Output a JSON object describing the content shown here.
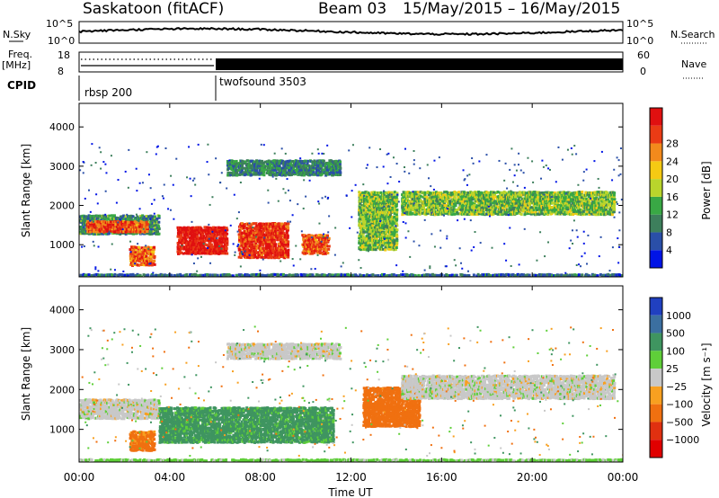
{
  "header": {
    "station": "Saskatoon (fitACF)",
    "beam": "Beam 03",
    "date_range": "15/May/2015 – 16/May/2015"
  },
  "top_panels": {
    "nsky_label": "N.Sky",
    "nsky_ticks": [
      "10^5",
      "10^0"
    ],
    "nsearch_label": "N.Search",
    "freq_label_1": "Freq.",
    "freq_label_2": "[MHz]",
    "freq_ticks": [
      "18",
      "8"
    ],
    "nave_ticks": [
      "60",
      "0"
    ],
    "nave_label": "Nave",
    "cpid_label": "CPID",
    "cpid_segments": [
      {
        "name": "rbsp 200",
        "start_hour": 0,
        "end_hour": 6
      },
      {
        "name": "twofsound 3503",
        "start_hour": 6,
        "end_hour": 24
      }
    ]
  },
  "axes": {
    "y_label": "Slant Range [km]",
    "x_label": "Time UT",
    "y_ticks": [
      "1000",
      "2000",
      "3000",
      "4000"
    ],
    "x_ticks": [
      "00:00",
      "04:00",
      "08:00",
      "12:00",
      "16:00",
      "20:00",
      "00:00"
    ]
  },
  "power_scale": {
    "label": "Power [dB]",
    "ticks": [
      "4",
      "8",
      "12",
      "16",
      "20",
      "24",
      "28"
    ],
    "colors": [
      "#0014e6",
      "#2a4fa8",
      "#3d7f5c",
      "#39a845",
      "#b9d52c",
      "#f5ca13",
      "#f28a1c",
      "#ea3b15",
      "#e01010"
    ]
  },
  "velocity_scale": {
    "label": "Velocity [m s⁻¹]",
    "ticks": [
      "1000",
      "500",
      "100",
      "25",
      "−25",
      "−100",
      "−500",
      "−1000"
    ],
    "colors": [
      "#2040c0",
      "#3b6fa0",
      "#3f9560",
      "#5fcf39",
      "#c8c8c8",
      "#f8a020",
      "#f07010",
      "#e03010",
      "#e00000"
    ]
  },
  "chart_data": [
    {
      "type": "heatmap",
      "title": "Power",
      "xlabel": "Time UT",
      "ylabel": "Slant Range [km]",
      "xlim": [
        0,
        24
      ],
      "ylim": [
        180,
        4600
      ],
      "colorbar": {
        "label": "Power [dB]",
        "range": [
          0,
          32
        ]
      },
      "regions": [
        {
          "hours": [
            0,
            3.5
          ],
          "range_km": [
            1300,
            1800
          ],
          "value_db": 10
        },
        {
          "hours": [
            0.3,
            3.0
          ],
          "range_km": [
            1350,
            1650
          ],
          "value_db": 26
        },
        {
          "hours": [
            2.2,
            3.3
          ],
          "range_km": [
            500,
            1000
          ],
          "value_db": 25
        },
        {
          "hours": [
            4.3,
            6.5
          ],
          "range_km": [
            800,
            1500
          ],
          "value_db": 30
        },
        {
          "hours": [
            7.0,
            9.2
          ],
          "range_km": [
            700,
            1600
          ],
          "value_db": 28
        },
        {
          "hours": [
            9.8,
            11.0
          ],
          "range_km": [
            800,
            1300
          ],
          "value_db": 26
        },
        {
          "hours": [
            12.3,
            14.0
          ],
          "range_km": [
            900,
            2400
          ],
          "value_db": 14
        },
        {
          "hours": [
            14.2,
            23.6
          ],
          "range_km": [
            1800,
            2400
          ],
          "value_db": 14
        },
        {
          "hours": [
            6.5,
            11.5
          ],
          "range_km": [
            2800,
            3200
          ],
          "value_db": 9
        },
        {
          "hours": [
            0,
            24
          ],
          "range_km": [
            180,
            300
          ],
          "value_db": 7
        }
      ]
    },
    {
      "type": "heatmap",
      "title": "Velocity",
      "xlabel": "Time UT",
      "ylabel": "Slant Range [km]",
      "xlim": [
        0,
        24
      ],
      "ylim": [
        180,
        4600
      ],
      "colorbar": {
        "label": "Velocity [m s⁻¹]",
        "range": [
          -1000,
          1000
        ]
      },
      "regions": [
        {
          "hours": [
            0,
            3.5
          ],
          "range_km": [
            1300,
            1800
          ],
          "value_ms": 0
        },
        {
          "hours": [
            3.5,
            11.2
          ],
          "range_km": [
            700,
            1600
          ],
          "value_ms": 150
        },
        {
          "hours": [
            2.2,
            3.3
          ],
          "range_km": [
            500,
            1000
          ],
          "value_ms": -150
        },
        {
          "hours": [
            12.5,
            15.0
          ],
          "range_km": [
            1100,
            2100
          ],
          "value_ms": -300
        },
        {
          "hours": [
            14.2,
            23.6
          ],
          "range_km": [
            1800,
            2400
          ],
          "value_ms": 0
        },
        {
          "hours": [
            6.5,
            11.5
          ],
          "range_km": [
            2800,
            3200
          ],
          "value_ms": 0
        },
        {
          "hours": [
            0,
            24
          ],
          "range_km": [
            180,
            300
          ],
          "value_ms": 40
        }
      ]
    }
  ]
}
